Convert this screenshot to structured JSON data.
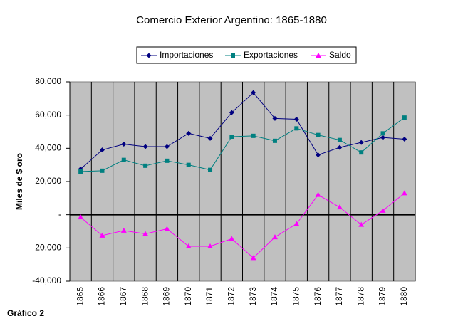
{
  "chart_data": {
    "type": "line",
    "title": "Comercio Exterior Argentino: 1865-1880",
    "y_label": "Miles de $ oro",
    "annotation": "Gráfico 2",
    "categories": [
      "1865",
      "1866",
      "1867",
      "1868",
      "1869",
      "1870",
      "1871",
      "1872",
      "1873",
      "1874",
      "1875",
      "1876",
      "1877",
      "1878",
      "1879",
      "1880"
    ],
    "series": [
      {
        "name": "Importaciones",
        "color": "#000080",
        "marker": "diamond",
        "values": [
          27500,
          39000,
          42500,
          41000,
          41000,
          49000,
          46000,
          61500,
          73500,
          58000,
          57500,
          36000,
          40500,
          43500,
          46500,
          45500
        ]
      },
      {
        "name": "Exportaciones",
        "color": "#008080",
        "marker": "square",
        "values": [
          26000,
          26500,
          33000,
          29500,
          32500,
          30000,
          27000,
          47000,
          47500,
          44500,
          52000,
          48000,
          45000,
          37500,
          49000,
          58500
        ]
      },
      {
        "name": "Saldo",
        "color": "#ff00ff",
        "marker": "triangle",
        "values": [
          -1500,
          -12500,
          -9500,
          -11500,
          -8500,
          -19000,
          -19000,
          -14500,
          -26000,
          -13500,
          -5500,
          12000,
          4500,
          -6000,
          2500,
          13000
        ]
      }
    ],
    "ylim": [
      -40000,
      80000
    ],
    "yticks": [
      {
        "value": 80000,
        "label": "80,000"
      },
      {
        "value": 60000,
        "label": "60,000"
      },
      {
        "value": 40000,
        "label": "40,000"
      },
      {
        "value": 20000,
        "label": "20,000"
      },
      {
        "value": 0,
        "label": "-"
      },
      {
        "value": -20000,
        "label": "-20,000"
      },
      {
        "value": -40000,
        "label": "-40,000"
      }
    ],
    "plot_background": "#c0c0c0",
    "legend": "top"
  }
}
